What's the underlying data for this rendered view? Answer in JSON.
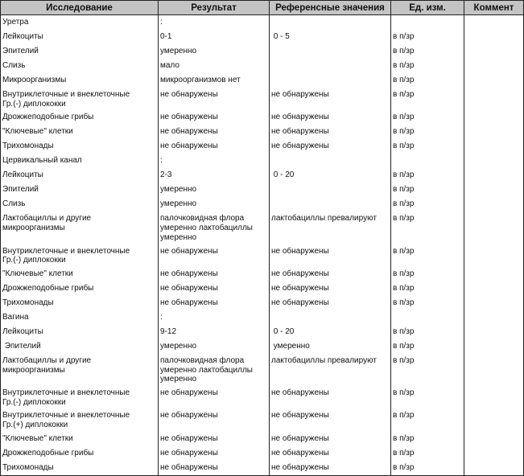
{
  "headers": [
    "Исследование",
    "Результат",
    "Референсные значения",
    "Ед. изм.",
    "Коммент"
  ],
  "rows": [
    [
      "Уретра",
      ":",
      "",
      "",
      ""
    ],
    [
      "Лейкоциты",
      "0-1",
      " 0 - 5",
      "в п/зр",
      ""
    ],
    [
      "Эпителий",
      "умеренно",
      "",
      "в п/зр",
      ""
    ],
    [
      "Слизь",
      "мало",
      "",
      "в п/зр",
      ""
    ],
    [
      "Микроорганизмы",
      "микроорганизмов нет",
      "",
      "в п/зр",
      ""
    ],
    [
      "Внутриклеточные и внеклеточные\nГр.(-) диплококки",
      "не обнаружены",
      "не обнаружены",
      "в п/зр",
      ""
    ],
    [
      "Дрожжеподобные грибы",
      "не обнаружены",
      "не обнаружены",
      "в п/зр",
      ""
    ],
    [
      "\"Ключевые\" клетки",
      "не обнаружены",
      "не обнаружены",
      "в п/зр",
      ""
    ],
    [
      "Трихомонады",
      "не обнаружены",
      "не обнаружены",
      "в п/зр",
      ""
    ],
    [
      "Цервикальный канал",
      ":",
      "",
      "",
      ""
    ],
    [
      "Лейкоциты",
      "2-3",
      " 0 - 20",
      "в п/зр",
      ""
    ],
    [
      "Эпителий",
      "умеренно",
      "",
      "в п/зр",
      ""
    ],
    [
      "Слизь",
      "умеренно",
      "",
      "в п/зр",
      ""
    ],
    [
      "Лактобациллы и другие\nмикроорганизмы",
      "палочковидная флора\nумеренно лактобациллы\nумеренно",
      "лактобациллы превалируют",
      "в п/зр",
      ""
    ],
    [
      "Внутриклеточные и внеклеточные\nГр.(-) диплококки",
      "не обнаружены",
      "не обнаружены",
      "в п/зр",
      ""
    ],
    [
      "\"Ключевые\" клетки",
      "не обнаружены",
      "не обнаружены",
      "в п/зр",
      ""
    ],
    [
      "Дрожжеподобные грибы",
      "не обнаружены",
      "не обнаружены",
      "в п/зр",
      ""
    ],
    [
      "Трихомонады",
      "не обнаружены",
      "не обнаружены",
      "в п/зр",
      ""
    ],
    [
      "Вагина",
      ":",
      "",
      "",
      ""
    ],
    [
      "Лейкоциты",
      "9-12",
      " 0 - 20",
      "в п/зр",
      ""
    ],
    [
      " Эпителий",
      "умеренно",
      " умеренно",
      "в п/зр",
      ""
    ],
    [
      "Лактобациллы и другие\nмикроорганизмы",
      "палочковидная флора\nумеренно лактобациллы\nумеренно",
      "лактобациллы превалируют",
      "в п/зр",
      ""
    ],
    [
      "Внутриклеточные и внеклеточные\nГр.(-) диплококки",
      "не обнаружены",
      "не обнаружены",
      "в п/зр",
      ""
    ],
    [
      "Внутриклеточные и внеклеточные\nГр.(+) диплококки",
      "не обнаружены",
      "не обнаружены",
      "в п/зр",
      ""
    ],
    [
      "\"Ключевые\" клетки",
      "не обнаружены",
      "не обнаружены",
      "в п/зр",
      ""
    ],
    [
      "Дрожжеподобные грибы",
      "не обнаружены",
      "не обнаружены",
      "в п/зр",
      ""
    ],
    [
      "Трихомонады",
      "не обнаружены",
      "не обнаружены",
      "в п/зр",
      ""
    ]
  ]
}
